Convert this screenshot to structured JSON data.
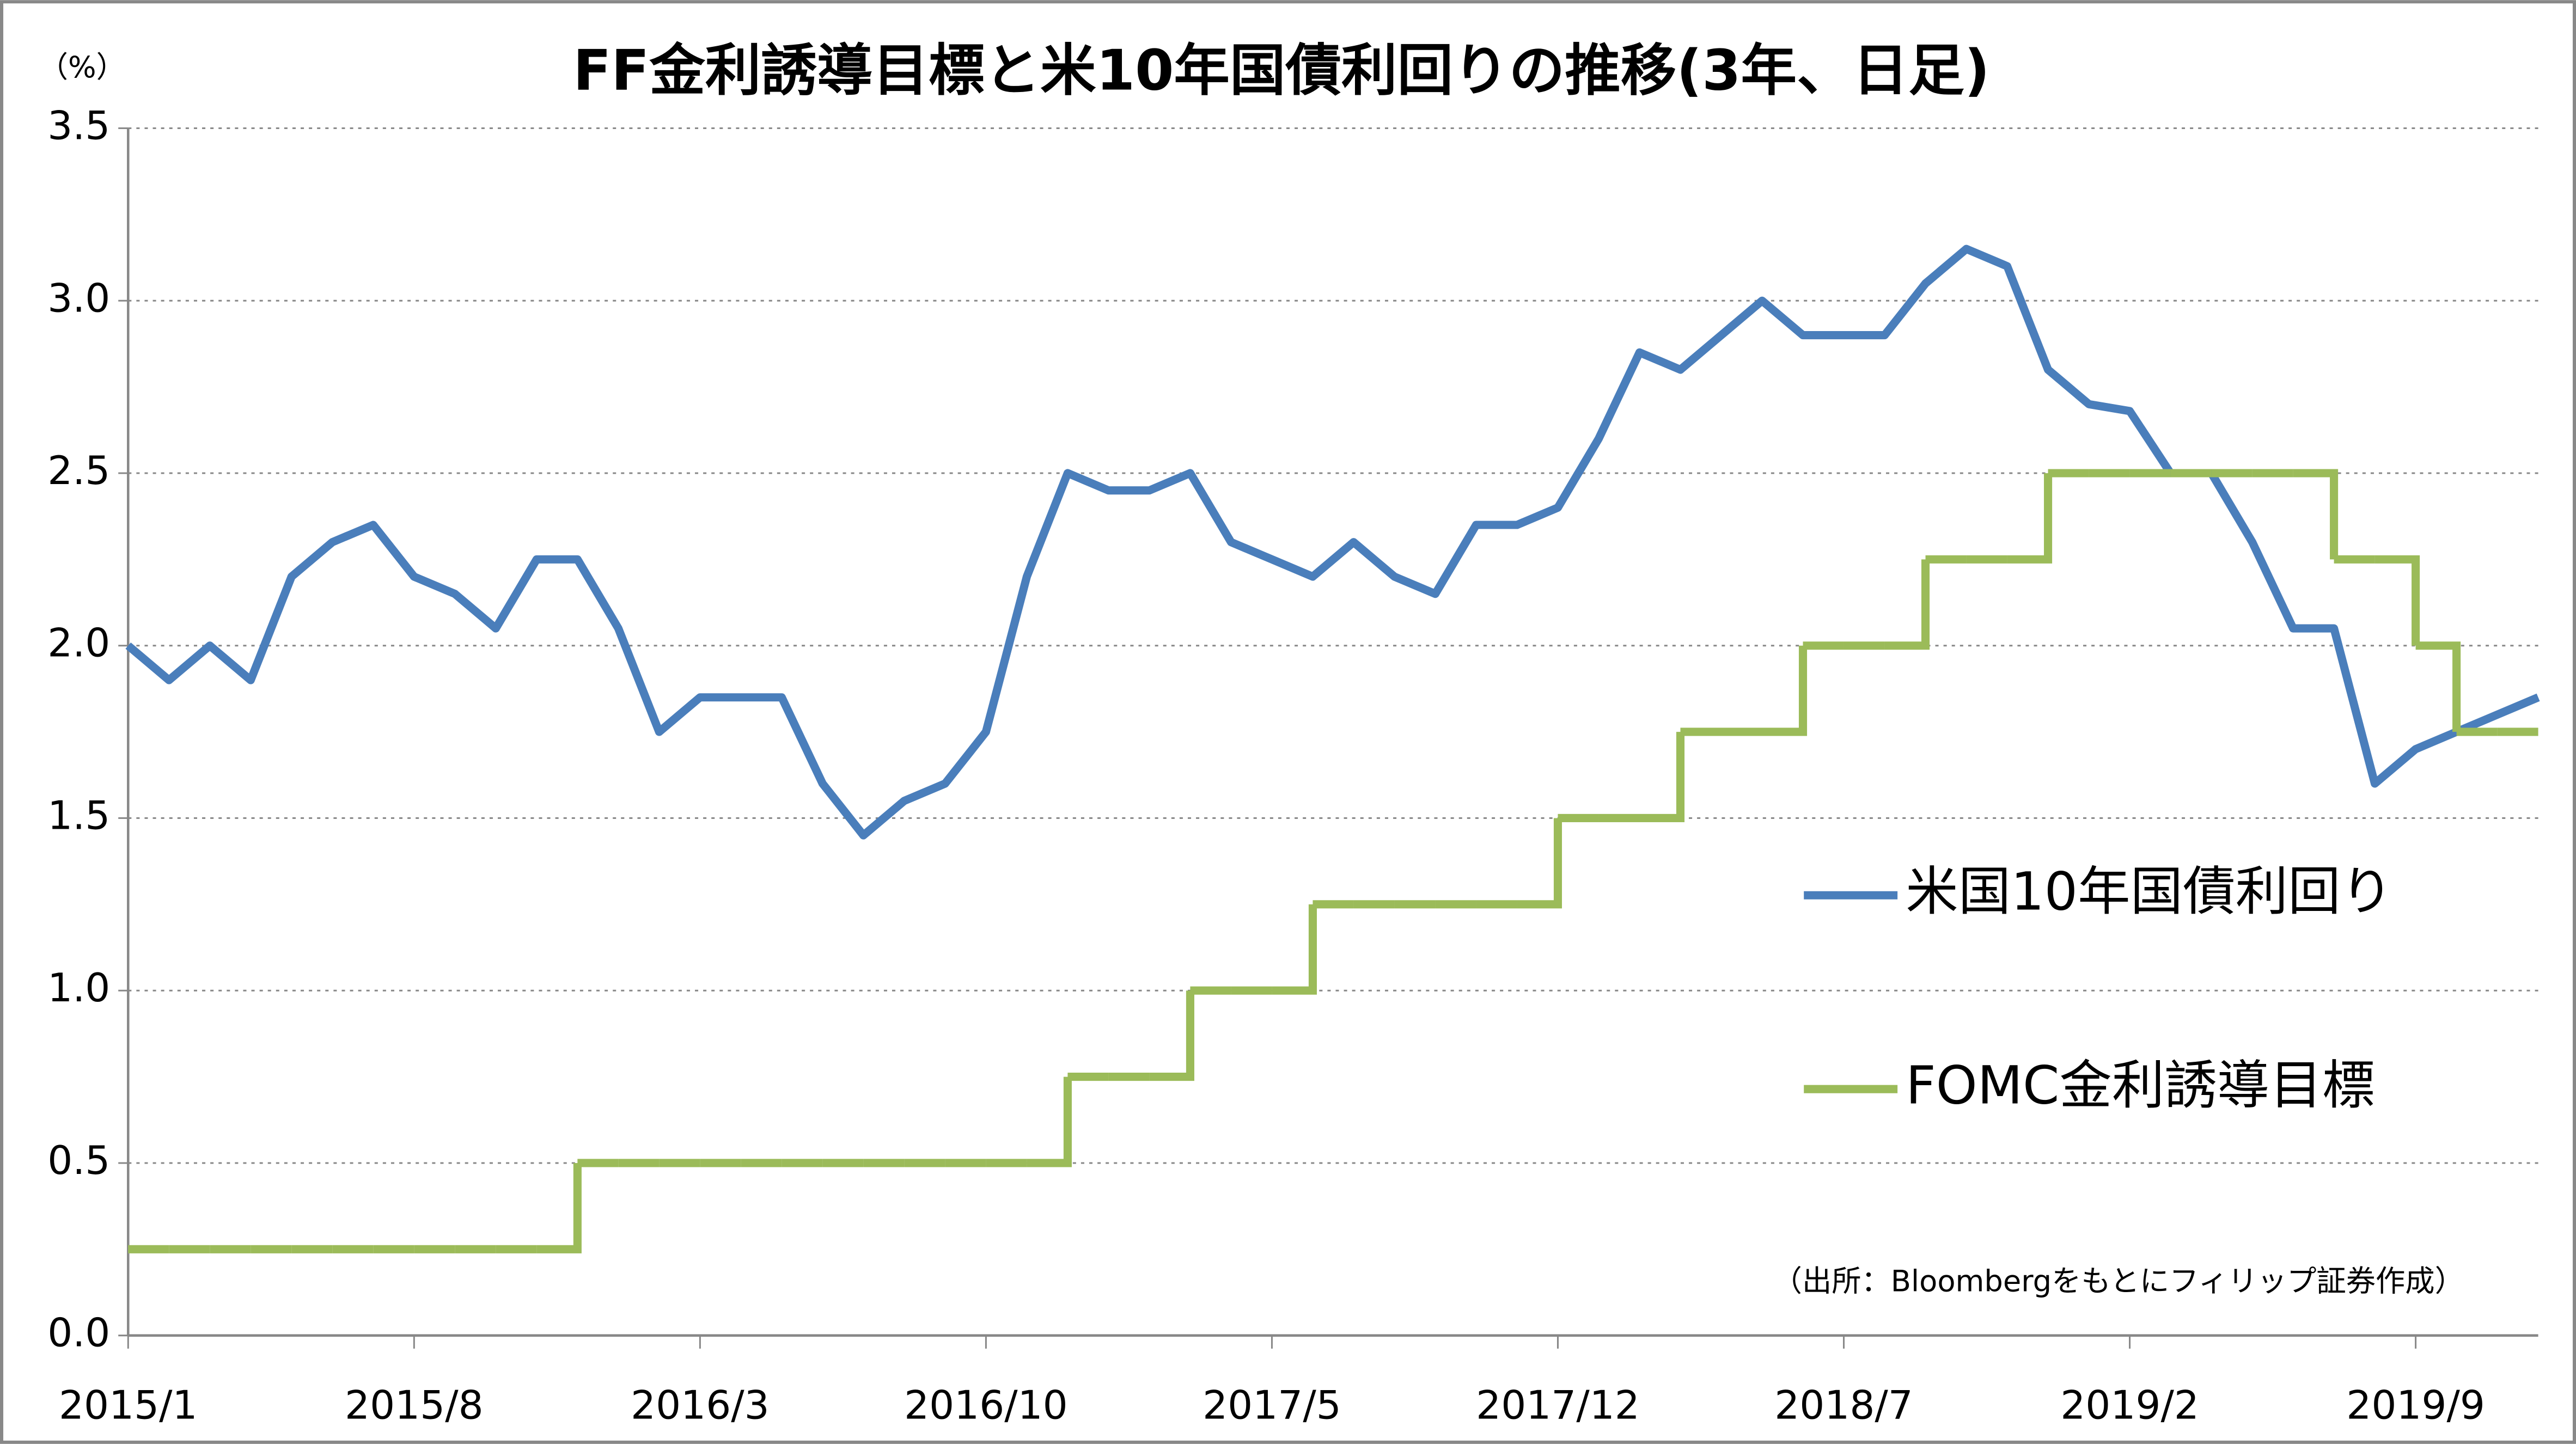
{
  "chart_data": {
    "type": "line",
    "title": "FF金利誘導目標と米10年国債利回りの推移(3年、日足)",
    "y_unit": "（%）",
    "note": "（出所：Bloombergをもとにフィリップ証券作成）",
    "x": [
      "2015/1",
      "2015/2",
      "2015/3",
      "2015/4",
      "2015/5",
      "2015/6",
      "2015/7",
      "2015/8",
      "2015/9",
      "2015/10",
      "2015/11",
      "2015/12",
      "2016/1",
      "2016/2",
      "2016/3",
      "2016/4",
      "2016/5",
      "2016/6",
      "2016/7",
      "2016/8",
      "2016/9",
      "2016/10",
      "2016/11",
      "2016/12",
      "2017/1",
      "2017/2",
      "2017/3",
      "2017/4",
      "2017/5",
      "2017/6",
      "2017/7",
      "2017/8",
      "2017/9",
      "2017/10",
      "2017/11",
      "2017/12",
      "2018/1",
      "2018/2",
      "2018/3",
      "2018/4",
      "2018/5",
      "2018/6",
      "2018/7",
      "2018/8",
      "2018/9",
      "2018/10",
      "2018/11",
      "2018/12",
      "2019/1",
      "2019/2",
      "2019/3",
      "2019/4",
      "2019/5",
      "2019/6",
      "2019/7",
      "2019/8",
      "2019/9",
      "2019/10",
      "2019/11",
      "2019/12"
    ],
    "xticks": [
      "2015/1",
      "2015/8",
      "2016/3",
      "2016/10",
      "2017/5",
      "2017/12",
      "2018/7",
      "2019/2",
      "2019/9"
    ],
    "ylim": [
      0,
      3.5
    ],
    "yticks": [
      {
        "value": 0,
        "label": "0.0"
      },
      0.5,
      {
        "value": 1,
        "label": "1.0"
      },
      1.5,
      {
        "value": 2,
        "label": "2.0"
      },
      2.5,
      {
        "value": 3,
        "label": "3.0"
      },
      3.5
    ],
    "grid": true,
    "series": [
      {
        "name": "米国10年国債利回り",
        "color": "#4a7ebb",
        "step": false,
        "values": [
          2.0,
          1.9,
          2.0,
          1.9,
          2.2,
          2.3,
          2.35,
          2.2,
          2.15,
          2.05,
          2.25,
          2.25,
          2.05,
          1.75,
          1.85,
          1.85,
          1.85,
          1.6,
          1.45,
          1.55,
          1.6,
          1.75,
          2.2,
          2.5,
          2.45,
          2.45,
          2.5,
          2.3,
          2.25,
          2.2,
          2.3,
          2.2,
          2.15,
          2.35,
          2.35,
          2.4,
          2.6,
          2.85,
          2.8,
          2.9,
          3.0,
          2.9,
          2.9,
          2.9,
          3.05,
          3.15,
          3.1,
          2.8,
          2.7,
          2.68,
          2.5,
          2.5,
          2.3,
          2.05,
          2.05,
          1.6,
          1.7,
          1.75,
          1.8,
          1.85
        ]
      },
      {
        "name": "FOMC金利誘導目標",
        "color": "#9bbb59",
        "step": true,
        "values": [
          0.25,
          0.25,
          0.25,
          0.25,
          0.25,
          0.25,
          0.25,
          0.25,
          0.25,
          0.25,
          0.25,
          0.5,
          0.5,
          0.5,
          0.5,
          0.5,
          0.5,
          0.5,
          0.5,
          0.5,
          0.5,
          0.5,
          0.5,
          0.75,
          0.75,
          0.75,
          1.0,
          1.0,
          1.0,
          1.25,
          1.25,
          1.25,
          1.25,
          1.25,
          1.25,
          1.5,
          1.5,
          1.5,
          1.75,
          1.75,
          1.75,
          2.0,
          2.0,
          2.0,
          2.25,
          2.25,
          2.25,
          2.5,
          2.5,
          2.5,
          2.5,
          2.5,
          2.5,
          2.5,
          2.25,
          2.25,
          2.0,
          1.75,
          1.75,
          1.75
        ]
      }
    ]
  }
}
